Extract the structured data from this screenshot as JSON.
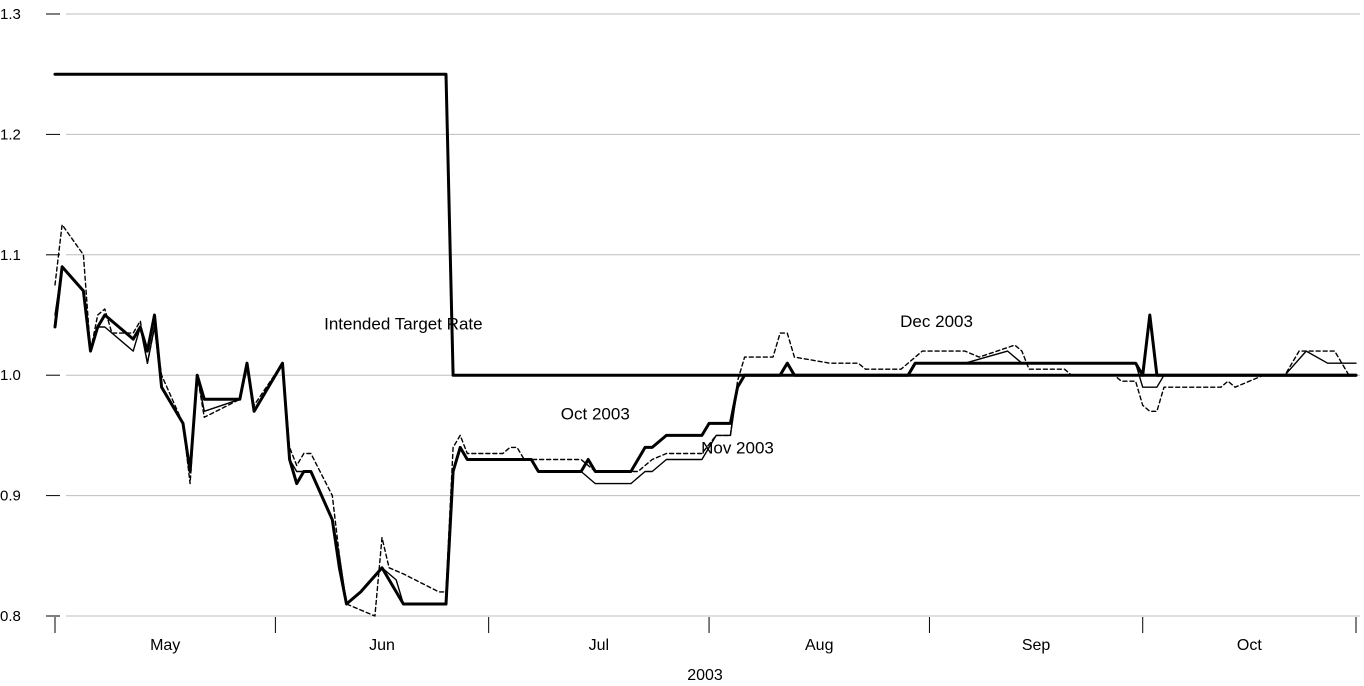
{
  "chart_data": {
    "type": "line",
    "xlabel": "2003",
    "ylabel": "",
    "ylim": [
      0.8,
      1.3
    ],
    "yticks": [
      0.8,
      0.9,
      1.0,
      1.1,
      1.2,
      1.3
    ],
    "ytick_labels": [
      "0.8",
      "0.9",
      "1.0",
      "1.1",
      "1.2",
      "1.3"
    ],
    "grid": "horizontal",
    "x_start": "2003-05-01",
    "x_end": "2003-10-31",
    "months": [
      {
        "label": "May",
        "start": "2003-05-01",
        "end": "2003-06-01"
      },
      {
        "label": "Jun",
        "start": "2003-06-01",
        "end": "2003-07-01"
      },
      {
        "label": "Jul",
        "start": "2003-07-01",
        "end": "2003-08-01"
      },
      {
        "label": "Aug",
        "start": "2003-08-01",
        "end": "2003-09-01"
      },
      {
        "label": "Sep",
        "start": "2003-09-01",
        "end": "2003-10-01"
      },
      {
        "label": "Oct",
        "start": "2003-10-01",
        "end": "2003-11-01"
      }
    ],
    "series": [
      {
        "name": "Intended Target Rate",
        "color": "#000000",
        "style": "step",
        "points": [
          [
            "2003-05-01",
            1.25
          ],
          [
            "2003-06-25",
            1.25
          ],
          [
            "2003-06-26",
            1.0
          ],
          [
            "2003-10-31",
            1.0
          ]
        ]
      },
      {
        "name": "Oct 2003",
        "color": "#000000",
        "style": "solid-thick",
        "points": [
          [
            "2003-05-01",
            1.04
          ],
          [
            "2003-05-02",
            1.09
          ],
          [
            "2003-05-05",
            1.07
          ],
          [
            "2003-05-06",
            1.02
          ],
          [
            "2003-05-07",
            1.04
          ],
          [
            "2003-05-08",
            1.05
          ],
          [
            "2003-05-12",
            1.03
          ],
          [
            "2003-05-13",
            1.04
          ],
          [
            "2003-05-14",
            1.02
          ],
          [
            "2003-05-15",
            1.05
          ],
          [
            "2003-05-16",
            0.99
          ],
          [
            "2003-05-19",
            0.96
          ],
          [
            "2003-05-20",
            0.92
          ],
          [
            "2003-05-21",
            1.0
          ],
          [
            "2003-05-22",
            0.98
          ],
          [
            "2003-05-27",
            0.98
          ],
          [
            "2003-05-28",
            1.01
          ],
          [
            "2003-05-29",
            0.97
          ],
          [
            "2003-06-02",
            1.01
          ],
          [
            "2003-06-03",
            0.93
          ],
          [
            "2003-06-04",
            0.91
          ],
          [
            "2003-06-05",
            0.92
          ],
          [
            "2003-06-06",
            0.92
          ],
          [
            "2003-06-09",
            0.88
          ],
          [
            "2003-06-10",
            0.84
          ],
          [
            "2003-06-11",
            0.81
          ],
          [
            "2003-06-13",
            0.82
          ],
          [
            "2003-06-16",
            0.84
          ],
          [
            "2003-06-19",
            0.81
          ],
          [
            "2003-06-24",
            0.81
          ],
          [
            "2003-06-25",
            0.81
          ],
          [
            "2003-06-26",
            0.92
          ],
          [
            "2003-06-27",
            0.94
          ],
          [
            "2003-06-28",
            0.93
          ],
          [
            "2003-07-07",
            0.93
          ],
          [
            "2003-07-08",
            0.92
          ],
          [
            "2003-07-14",
            0.92
          ],
          [
            "2003-07-15",
            0.93
          ],
          [
            "2003-07-16",
            0.92
          ],
          [
            "2003-07-21",
            0.92
          ],
          [
            "2003-07-23",
            0.94
          ],
          [
            "2003-07-24",
            0.94
          ],
          [
            "2003-07-26",
            0.95
          ],
          [
            "2003-07-30",
            0.95
          ],
          [
            "2003-07-31",
            0.95
          ],
          [
            "2003-08-01",
            0.96
          ],
          [
            "2003-08-04",
            0.96
          ],
          [
            "2003-08-05",
            0.99
          ],
          [
            "2003-08-06",
            1.0
          ],
          [
            "2003-08-11",
            1.0
          ],
          [
            "2003-08-12",
            1.01
          ],
          [
            "2003-08-13",
            1.0
          ],
          [
            "2003-08-29",
            1.0
          ],
          [
            "2003-08-30",
            1.01
          ],
          [
            "2003-09-30",
            1.01
          ],
          [
            "2003-10-01",
            1.0
          ],
          [
            "2003-10-02",
            1.05
          ],
          [
            "2003-10-03",
            1.0
          ],
          [
            "2003-10-31",
            1.0
          ]
        ]
      },
      {
        "name": "Nov 2003",
        "color": "#000000",
        "style": "solid-thin",
        "points": [
          [
            "2003-05-01",
            1.05
          ],
          [
            "2003-05-02",
            1.09
          ],
          [
            "2003-05-05",
            1.07
          ],
          [
            "2003-05-06",
            1.02
          ],
          [
            "2003-05-07",
            1.04
          ],
          [
            "2003-05-08",
            1.04
          ],
          [
            "2003-05-12",
            1.02
          ],
          [
            "2003-05-13",
            1.04
          ],
          [
            "2003-05-14",
            1.01
          ],
          [
            "2003-05-15",
            1.04
          ],
          [
            "2003-05-16",
            0.99
          ],
          [
            "2003-05-19",
            0.96
          ],
          [
            "2003-05-20",
            0.92
          ],
          [
            "2003-05-21",
            1.0
          ],
          [
            "2003-05-22",
            0.97
          ],
          [
            "2003-05-27",
            0.98
          ],
          [
            "2003-05-28",
            1.01
          ],
          [
            "2003-05-29",
            0.97
          ],
          [
            "2003-06-02",
            1.01
          ],
          [
            "2003-06-03",
            0.93
          ],
          [
            "2003-06-04",
            0.92
          ],
          [
            "2003-06-05",
            0.92
          ],
          [
            "2003-06-06",
            0.92
          ],
          [
            "2003-06-09",
            0.88
          ],
          [
            "2003-06-10",
            0.85
          ],
          [
            "2003-06-11",
            0.81
          ],
          [
            "2003-06-13",
            0.82
          ],
          [
            "2003-06-16",
            0.84
          ],
          [
            "2003-06-18",
            0.83
          ],
          [
            "2003-06-19",
            0.81
          ],
          [
            "2003-06-24",
            0.81
          ],
          [
            "2003-06-25",
            0.81
          ],
          [
            "2003-06-26",
            0.92
          ],
          [
            "2003-06-27",
            0.94
          ],
          [
            "2003-06-28",
            0.93
          ],
          [
            "2003-07-07",
            0.93
          ],
          [
            "2003-07-08",
            0.92
          ],
          [
            "2003-07-14",
            0.92
          ],
          [
            "2003-07-16",
            0.91
          ],
          [
            "2003-07-21",
            0.91
          ],
          [
            "2003-07-23",
            0.92
          ],
          [
            "2003-07-24",
            0.92
          ],
          [
            "2003-07-26",
            0.93
          ],
          [
            "2003-07-31",
            0.93
          ],
          [
            "2003-08-02",
            0.95
          ],
          [
            "2003-08-04",
            0.95
          ],
          [
            "2003-08-05",
            0.99
          ],
          [
            "2003-08-06",
            1.0
          ],
          [
            "2003-08-11",
            1.0
          ],
          [
            "2003-08-12",
            1.01
          ],
          [
            "2003-08-13",
            1.0
          ],
          [
            "2003-08-29",
            1.0
          ],
          [
            "2003-08-30",
            1.01
          ],
          [
            "2003-09-06",
            1.01
          ],
          [
            "2003-09-12",
            1.02
          ],
          [
            "2003-09-14",
            1.01
          ],
          [
            "2003-09-30",
            1.01
          ],
          [
            "2003-10-01",
            0.99
          ],
          [
            "2003-10-03",
            0.99
          ],
          [
            "2003-10-04",
            1.0
          ],
          [
            "2003-10-21",
            1.0
          ],
          [
            "2003-10-24",
            1.02
          ],
          [
            "2003-10-27",
            1.01
          ],
          [
            "2003-10-31",
            1.01
          ]
        ]
      },
      {
        "name": "Dec 2003",
        "color": "#000000",
        "style": "dashed",
        "points": [
          [
            "2003-05-01",
            1.075
          ],
          [
            "2003-05-02",
            1.125
          ],
          [
            "2003-05-05",
            1.1
          ],
          [
            "2003-05-06",
            1.02
          ],
          [
            "2003-05-07",
            1.05
          ],
          [
            "2003-05-08",
            1.055
          ],
          [
            "2003-05-09",
            1.035
          ],
          [
            "2003-05-12",
            1.035
          ],
          [
            "2003-05-13",
            1.045
          ],
          [
            "2003-05-14",
            1.01
          ],
          [
            "2003-05-15",
            1.04
          ],
          [
            "2003-05-16",
            1.0
          ],
          [
            "2003-05-19",
            0.96
          ],
          [
            "2003-05-20",
            0.91
          ],
          [
            "2003-05-21",
            1.0
          ],
          [
            "2003-05-22",
            0.965
          ],
          [
            "2003-05-27",
            0.98
          ],
          [
            "2003-05-28",
            1.005
          ],
          [
            "2003-05-29",
            0.975
          ],
          [
            "2003-06-02",
            1.01
          ],
          [
            "2003-06-03",
            0.94
          ],
          [
            "2003-06-04",
            0.925
          ],
          [
            "2003-06-05",
            0.935
          ],
          [
            "2003-06-06",
            0.935
          ],
          [
            "2003-06-09",
            0.9
          ],
          [
            "2003-06-10",
            0.85
          ],
          [
            "2003-06-11",
            0.81
          ],
          [
            "2003-06-13",
            0.805
          ],
          [
            "2003-06-15",
            0.8
          ],
          [
            "2003-06-16",
            0.865
          ],
          [
            "2003-06-17",
            0.84
          ],
          [
            "2003-06-19",
            0.835
          ],
          [
            "2003-06-24",
            0.82
          ],
          [
            "2003-06-25",
            0.82
          ],
          [
            "2003-06-26",
            0.94
          ],
          [
            "2003-06-27",
            0.95
          ],
          [
            "2003-06-28",
            0.935
          ],
          [
            "2003-07-03",
            0.935
          ],
          [
            "2003-07-04",
            0.94
          ],
          [
            "2003-07-05",
            0.94
          ],
          [
            "2003-07-06",
            0.93
          ],
          [
            "2003-07-14",
            0.93
          ],
          [
            "2003-07-16",
            0.92
          ],
          [
            "2003-07-22",
            0.92
          ],
          [
            "2003-07-24",
            0.93
          ],
          [
            "2003-07-26",
            0.935
          ],
          [
            "2003-07-31",
            0.935
          ],
          [
            "2003-08-02",
            0.95
          ],
          [
            "2003-08-04",
            0.95
          ],
          [
            "2003-08-05",
            0.995
          ],
          [
            "2003-08-06",
            1.015
          ],
          [
            "2003-08-10",
            1.015
          ],
          [
            "2003-08-11",
            1.035
          ],
          [
            "2003-08-12",
            1.035
          ],
          [
            "2003-08-13",
            1.015
          ],
          [
            "2003-08-18",
            1.01
          ],
          [
            "2003-08-22",
            1.01
          ],
          [
            "2003-08-23",
            1.005
          ],
          [
            "2003-08-28",
            1.005
          ],
          [
            "2003-08-31",
            1.02
          ],
          [
            "2003-09-06",
            1.02
          ],
          [
            "2003-09-08",
            1.015
          ],
          [
            "2003-09-13",
            1.025
          ],
          [
            "2003-09-14",
            1.02
          ],
          [
            "2003-09-15",
            1.005
          ],
          [
            "2003-09-20",
            1.005
          ],
          [
            "2003-09-21",
            1.0
          ],
          [
            "2003-09-27",
            1.0
          ],
          [
            "2003-09-28",
            0.995
          ],
          [
            "2003-09-30",
            0.995
          ],
          [
            "2003-10-01",
            0.975
          ],
          [
            "2003-10-02",
            0.97
          ],
          [
            "2003-10-03",
            0.97
          ],
          [
            "2003-10-04",
            0.99
          ],
          [
            "2003-10-12",
            0.99
          ],
          [
            "2003-10-13",
            0.995
          ],
          [
            "2003-10-14",
            0.99
          ],
          [
            "2003-10-18",
            1.0
          ],
          [
            "2003-10-21",
            1.0
          ],
          [
            "2003-10-23",
            1.02
          ],
          [
            "2003-10-28",
            1.02
          ],
          [
            "2003-10-30",
            1.0
          ],
          [
            "2003-10-31",
            1.0
          ]
        ]
      }
    ],
    "annotations": [
      {
        "text": "Intended Target Rate",
        "x": "2003-06-19",
        "y": 1.038
      },
      {
        "text": "Oct 2003",
        "x": "2003-07-16",
        "y": 0.963
      },
      {
        "text": "Nov 2003",
        "x": "2003-08-05",
        "y": 0.935
      },
      {
        "text": "Dec 2003",
        "x": "2003-09-02",
        "y": 1.04
      }
    ]
  }
}
